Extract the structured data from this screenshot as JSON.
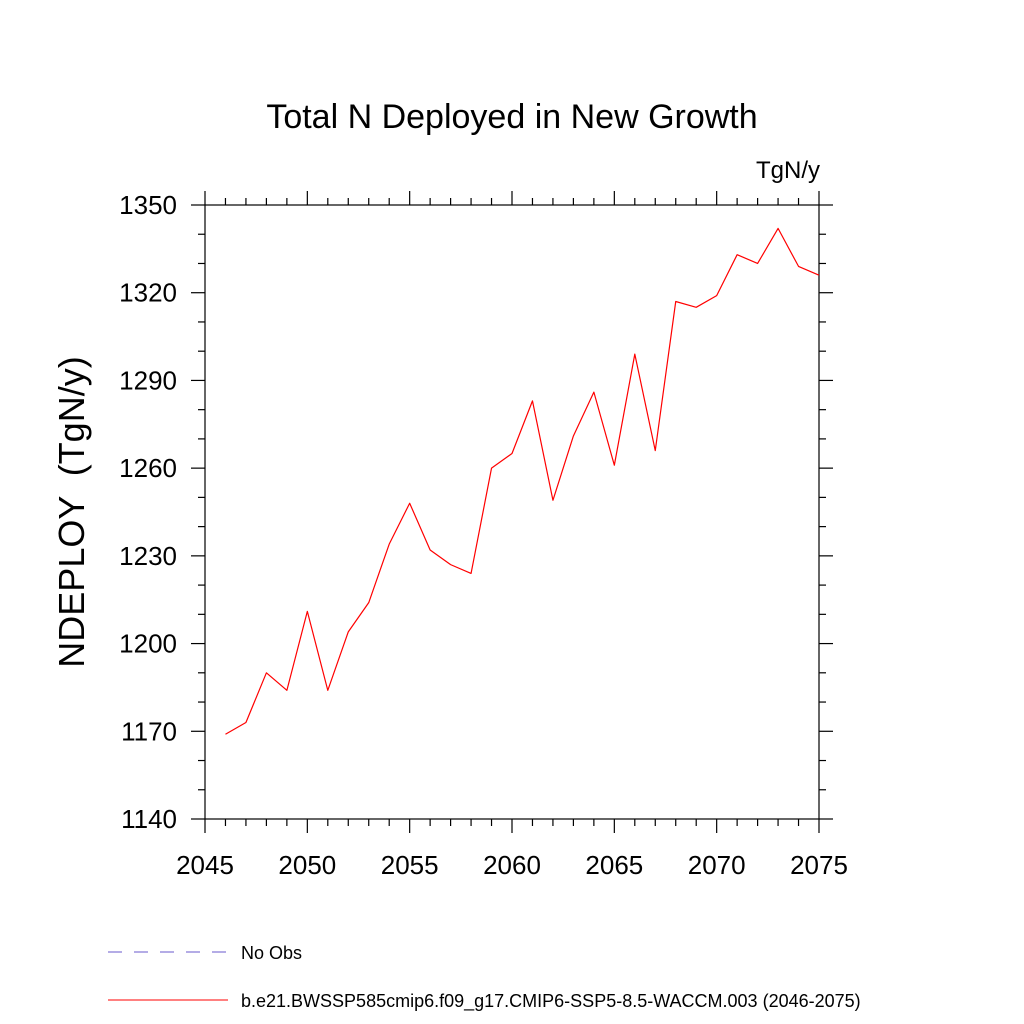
{
  "chart_data": {
    "type": "line",
    "title": "Total N Deployed in New Growth",
    "units_label": "TgN/y",
    "ylabel": "NDEPLOY  (TgN/y)",
    "xlabel": "",
    "xlim": [
      2045,
      2075
    ],
    "ylim": [
      1140,
      1350
    ],
    "xticks": [
      2045,
      2050,
      2055,
      2060,
      2065,
      2070,
      2075
    ],
    "yticks": [
      1140,
      1170,
      1200,
      1230,
      1260,
      1290,
      1320,
      1350
    ],
    "grid": false,
    "legend_position": "bottom",
    "series": [
      {
        "name": "b.e21.BWSSP585cmip6.f09_g17.CMIP6-SSP5-8.5-WACCM.003 (2046-2075)",
        "color": "#ff0000",
        "style": "solid",
        "x": [
          2046,
          2047,
          2048,
          2049,
          2050,
          2051,
          2052,
          2053,
          2054,
          2055,
          2056,
          2057,
          2058,
          2059,
          2060,
          2061,
          2062,
          2063,
          2064,
          2065,
          2066,
          2067,
          2068,
          2069,
          2070,
          2071,
          2072,
          2073,
          2074,
          2075
        ],
        "y": [
          1169,
          1173,
          1190,
          1184,
          1211,
          1184,
          1204,
          1214,
          1234,
          1248,
          1232,
          1227,
          1224,
          1260,
          1265,
          1283,
          1249,
          1271,
          1286,
          1261,
          1299,
          1266,
          1317,
          1315,
          1319,
          1333,
          1330,
          1342,
          1329,
          1326
        ]
      }
    ],
    "legend": [
      {
        "label": "No Obs",
        "color": "#6a5acd",
        "style": "dashed"
      },
      {
        "label": "b.e21.BWSSP585cmip6.f09_g17.CMIP6-SSP5-8.5-WACCM.003 (2046-2075)",
        "color": "#ff0000",
        "style": "solid"
      }
    ]
  }
}
